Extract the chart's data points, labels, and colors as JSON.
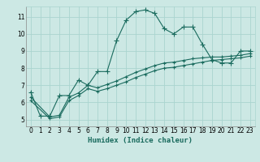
{
  "bg_color": "#cce8e4",
  "grid_color": "#aad4cf",
  "line_color": "#1a6b5e",
  "xlabel": "Humidex (Indice chaleur)",
  "xlim": [
    -0.5,
    23.5
  ],
  "ylim": [
    4.6,
    11.6
  ],
  "xticks": [
    0,
    1,
    2,
    3,
    4,
    5,
    6,
    7,
    8,
    9,
    10,
    11,
    12,
    13,
    14,
    15,
    16,
    17,
    18,
    19,
    20,
    21,
    22,
    23
  ],
  "yticks": [
    5,
    6,
    7,
    8,
    9,
    10,
    11
  ],
  "series1_x": [
    0,
    1,
    2,
    3,
    4,
    5,
    6,
    7,
    8,
    9,
    10,
    11,
    12,
    13,
    14,
    15,
    16,
    17,
    18,
    19,
    20,
    21,
    22,
    23
  ],
  "series1_y": [
    6.6,
    5.2,
    5.2,
    6.4,
    6.4,
    7.3,
    7.0,
    7.8,
    7.8,
    9.6,
    10.8,
    11.3,
    11.4,
    11.2,
    10.3,
    10.0,
    10.4,
    10.4,
    9.4,
    8.5,
    8.3,
    8.3,
    9.0,
    9.0
  ],
  "series2_x": [
    0,
    2,
    3,
    4,
    5,
    6,
    7,
    8,
    9,
    10,
    11,
    12,
    13,
    14,
    15,
    16,
    17,
    18,
    19,
    20,
    21,
    22,
    23
  ],
  "series2_y": [
    6.3,
    5.15,
    5.25,
    6.3,
    6.55,
    7.0,
    6.85,
    7.05,
    7.25,
    7.5,
    7.75,
    7.95,
    8.15,
    8.3,
    8.35,
    8.45,
    8.55,
    8.6,
    8.65,
    8.65,
    8.7,
    8.75,
    8.85
  ],
  "series3_x": [
    0,
    2,
    3,
    4,
    5,
    6,
    7,
    8,
    9,
    10,
    11,
    12,
    13,
    14,
    15,
    16,
    17,
    18,
    19,
    20,
    21,
    22,
    23
  ],
  "series3_y": [
    6.1,
    5.05,
    5.15,
    6.1,
    6.4,
    6.8,
    6.65,
    6.8,
    7.0,
    7.2,
    7.45,
    7.65,
    7.85,
    8.0,
    8.05,
    8.15,
    8.25,
    8.35,
    8.45,
    8.5,
    8.55,
    8.6,
    8.7
  ],
  "marker_size": 3,
  "linewidth": 0.8
}
